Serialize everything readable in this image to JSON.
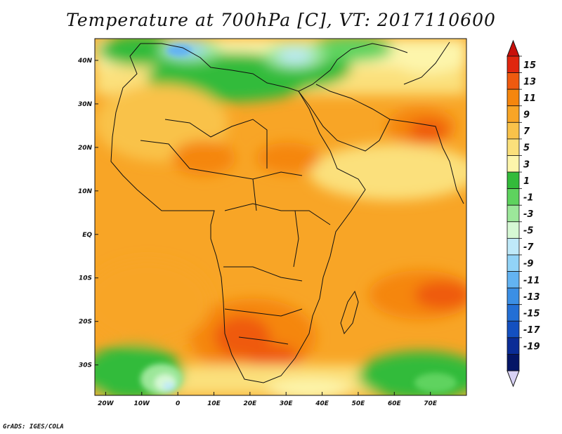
{
  "title": "Temperature at 700hPa [C], VT: 2017110600",
  "footer": "GrADS: IGES/COLA",
  "map": {
    "lon_range": [
      -23,
      80
    ],
    "lat_range": [
      -37,
      45
    ],
    "lat_ticks": [
      {
        "lat": 40,
        "label": "40N"
      },
      {
        "lat": 30,
        "label": "30N"
      },
      {
        "lat": 20,
        "label": "20N"
      },
      {
        "lat": 10,
        "label": "10N"
      },
      {
        "lat": 0,
        "label": "EQ"
      },
      {
        "lat": -10,
        "label": "10S"
      },
      {
        "lat": -20,
        "label": "20S"
      },
      {
        "lat": -30,
        "label": "30S"
      }
    ],
    "lon_ticks": [
      {
        "lon": -20,
        "label": "20W"
      },
      {
        "lon": -10,
        "label": "10W"
      },
      {
        "lon": 0,
        "label": "0"
      },
      {
        "lon": 10,
        "label": "10E"
      },
      {
        "lon": 20,
        "label": "20E"
      },
      {
        "lon": 30,
        "label": "30E"
      },
      {
        "lon": 40,
        "label": "40E"
      },
      {
        "lon": 50,
        "label": "50E"
      },
      {
        "lon": 60,
        "label": "60E"
      },
      {
        "lon": 70,
        "label": "70E"
      }
    ]
  },
  "colorbar": {
    "labels": [
      "15",
      "13",
      "11",
      "9",
      "7",
      "5",
      "3",
      "1",
      "-1",
      "-3",
      "-5",
      "-7",
      "-9",
      "-11",
      "-13",
      "-15",
      "-17",
      "-19"
    ],
    "colors": [
      "#e0260e",
      "#ef5a0f",
      "#f5860d",
      "#f8a526",
      "#f9c24a",
      "#fbe07b",
      "#fdf5ab",
      "#33bb3b",
      "#5ed35e",
      "#9ce79a",
      "#d6f8d4",
      "#bfe9f9",
      "#92d3f7",
      "#63b3f2",
      "#3b8fe5",
      "#236fd5",
      "#1450c0",
      "#0a2c96",
      "#041566"
    ],
    "arrow_top_color": "#c8100a",
    "arrow_bottom_color": "#d8d2f5"
  }
}
